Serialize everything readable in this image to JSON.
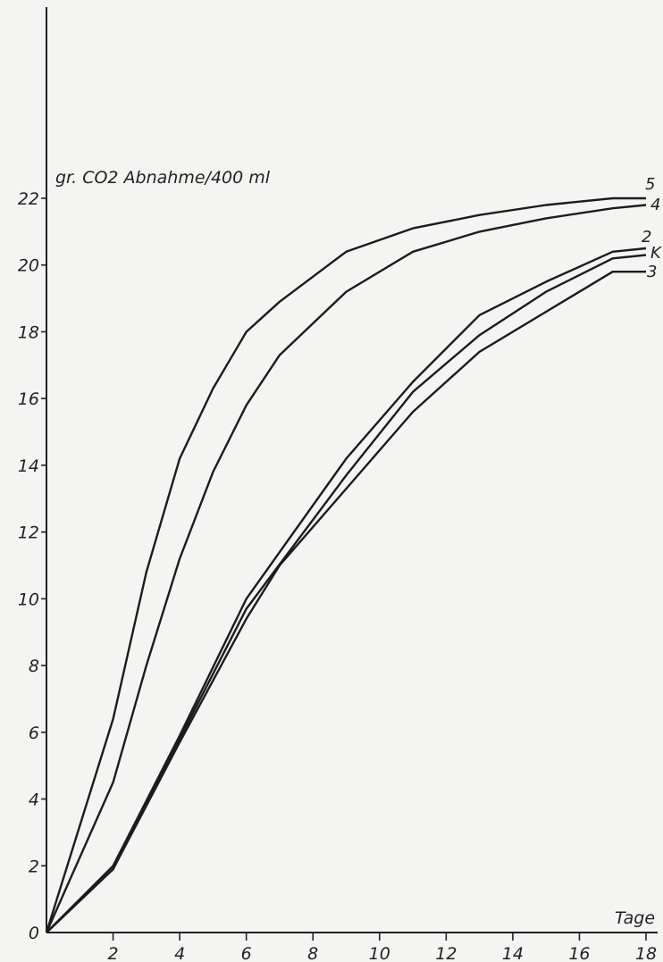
{
  "chart_data": {
    "type": "line",
    "ylabel": "gr. CO2 Abnahme/400 ml",
    "xlabel": "Tage",
    "xlim": [
      0,
      18
    ],
    "ylim": [
      0,
      22
    ],
    "x_ticks": [
      2,
      4,
      6,
      8,
      10,
      12,
      14,
      16,
      18
    ],
    "x_tick_labels": [
      "2",
      "4",
      "6",
      "8",
      "10",
      "12",
      "14",
      "16",
      "18"
    ],
    "y_ticks": [
      0,
      2,
      4,
      6,
      8,
      10,
      12,
      14,
      16,
      18,
      20,
      22
    ],
    "y_tick_labels": [
      "0",
      "2",
      "4",
      "6",
      "8",
      "10",
      "12",
      "14",
      "16",
      "18",
      "20",
      "22"
    ],
    "grid": false,
    "series": [
      {
        "name": "5",
        "x": [
          0,
          2,
          3,
          4,
          5,
          6,
          7,
          9,
          11,
          13,
          15,
          17,
          18
        ],
        "y": [
          0,
          6.4,
          10.8,
          14.2,
          16.3,
          18.0,
          18.9,
          20.4,
          21.1,
          21.5,
          21.8,
          22.0,
          22.0
        ]
      },
      {
        "name": "4",
        "x": [
          0,
          2,
          3,
          4,
          5,
          6,
          7,
          9,
          11,
          13,
          15,
          17,
          18
        ],
        "y": [
          0,
          4.5,
          8.0,
          11.2,
          13.8,
          15.8,
          17.3,
          19.2,
          20.4,
          21.0,
          21.4,
          21.7,
          21.8
        ]
      },
      {
        "name": "2",
        "x": [
          0,
          2,
          4,
          6,
          9,
          11,
          13,
          15,
          17,
          18
        ],
        "y": [
          0,
          2.0,
          5.9,
          10.0,
          14.2,
          16.5,
          18.5,
          19.5,
          20.4,
          20.5
        ]
      },
      {
        "name": "K",
        "x": [
          0,
          2,
          4,
          6,
          9,
          11,
          13,
          15,
          17,
          18
        ],
        "y": [
          0,
          1.9,
          5.8,
          9.7,
          13.7,
          16.2,
          17.9,
          19.2,
          20.2,
          20.3
        ]
      },
      {
        "name": "3",
        "x": [
          0,
          2,
          4,
          6,
          7,
          9,
          11,
          13,
          15,
          17,
          18
        ],
        "y": [
          0,
          1.9,
          5.7,
          9.4,
          11.0,
          13.3,
          15.6,
          17.4,
          18.6,
          19.8,
          19.8
        ]
      }
    ]
  }
}
